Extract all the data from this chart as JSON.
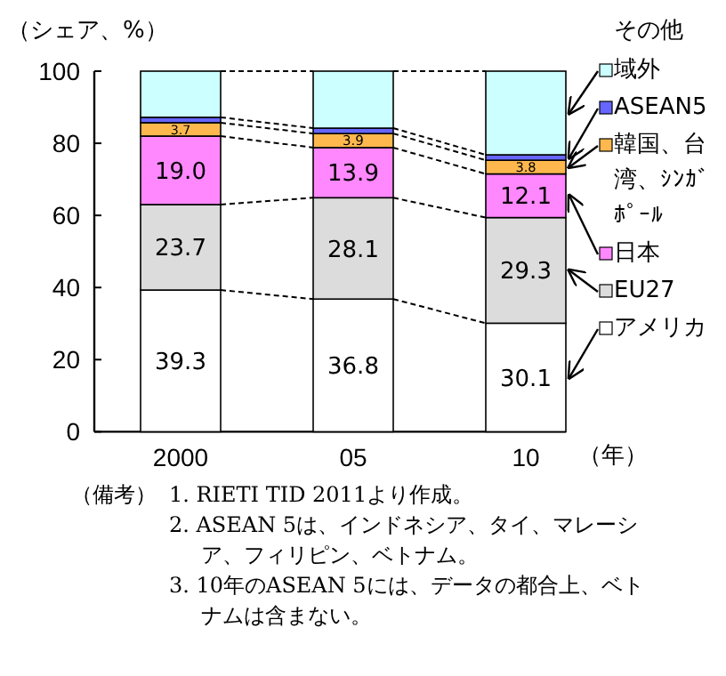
{
  "chart_data": {
    "type": "bar",
    "stacked": true,
    "ylabel": "（シェア、%）",
    "xlabel": "（年）",
    "categories": [
      "2000",
      "05",
      "10"
    ],
    "ylim": [
      0,
      100
    ],
    "yticks": [
      0,
      20,
      40,
      60,
      80,
      100
    ],
    "legend": "right",
    "series": [
      {
        "name": "アメリカ",
        "color": "#ffffff",
        "values": [
          39.3,
          36.8,
          30.1
        ],
        "value_labels": [
          "39.3",
          "36.8",
          "30.1"
        ]
      },
      {
        "name": "EU27",
        "color": "#dcdcdc",
        "values": [
          23.7,
          28.1,
          29.3
        ],
        "value_labels": [
          "23.7",
          "28.1",
          "29.3"
        ]
      },
      {
        "name": "日本",
        "color": "#ff88ff",
        "values": [
          19.0,
          13.9,
          12.1
        ],
        "value_labels": [
          "19.0",
          "13.9",
          "12.1"
        ]
      },
      {
        "name": "韓国、台湾、ｼﾝｶﾞﾎﾟｰﾙ",
        "color": "#ffb84d",
        "values": [
          3.7,
          3.9,
          3.8
        ],
        "value_labels": [
          "3.7",
          "3.9",
          "3.8"
        ]
      },
      {
        "name": "ASEAN5",
        "color": "#6666ff",
        "values": [
          1.5,
          1.5,
          1.5
        ]
      },
      {
        "name": "域外",
        "color": "#ccffff",
        "values": [
          12.8,
          15.8,
          23.2
        ]
      },
      {
        "name": "その他",
        "values": [
          0,
          0,
          0
        ]
      }
    ],
    "annotations": [
      "（備考）",
      "1. RIETI TID 2011より作成。",
      "2. ASEAN 5は、インドネシア、タイ、マレーシア、フィリピン、ベトナム。",
      "3. 10年のASEAN 5には、データの都合上、ベトナムは含まない。"
    ]
  }
}
